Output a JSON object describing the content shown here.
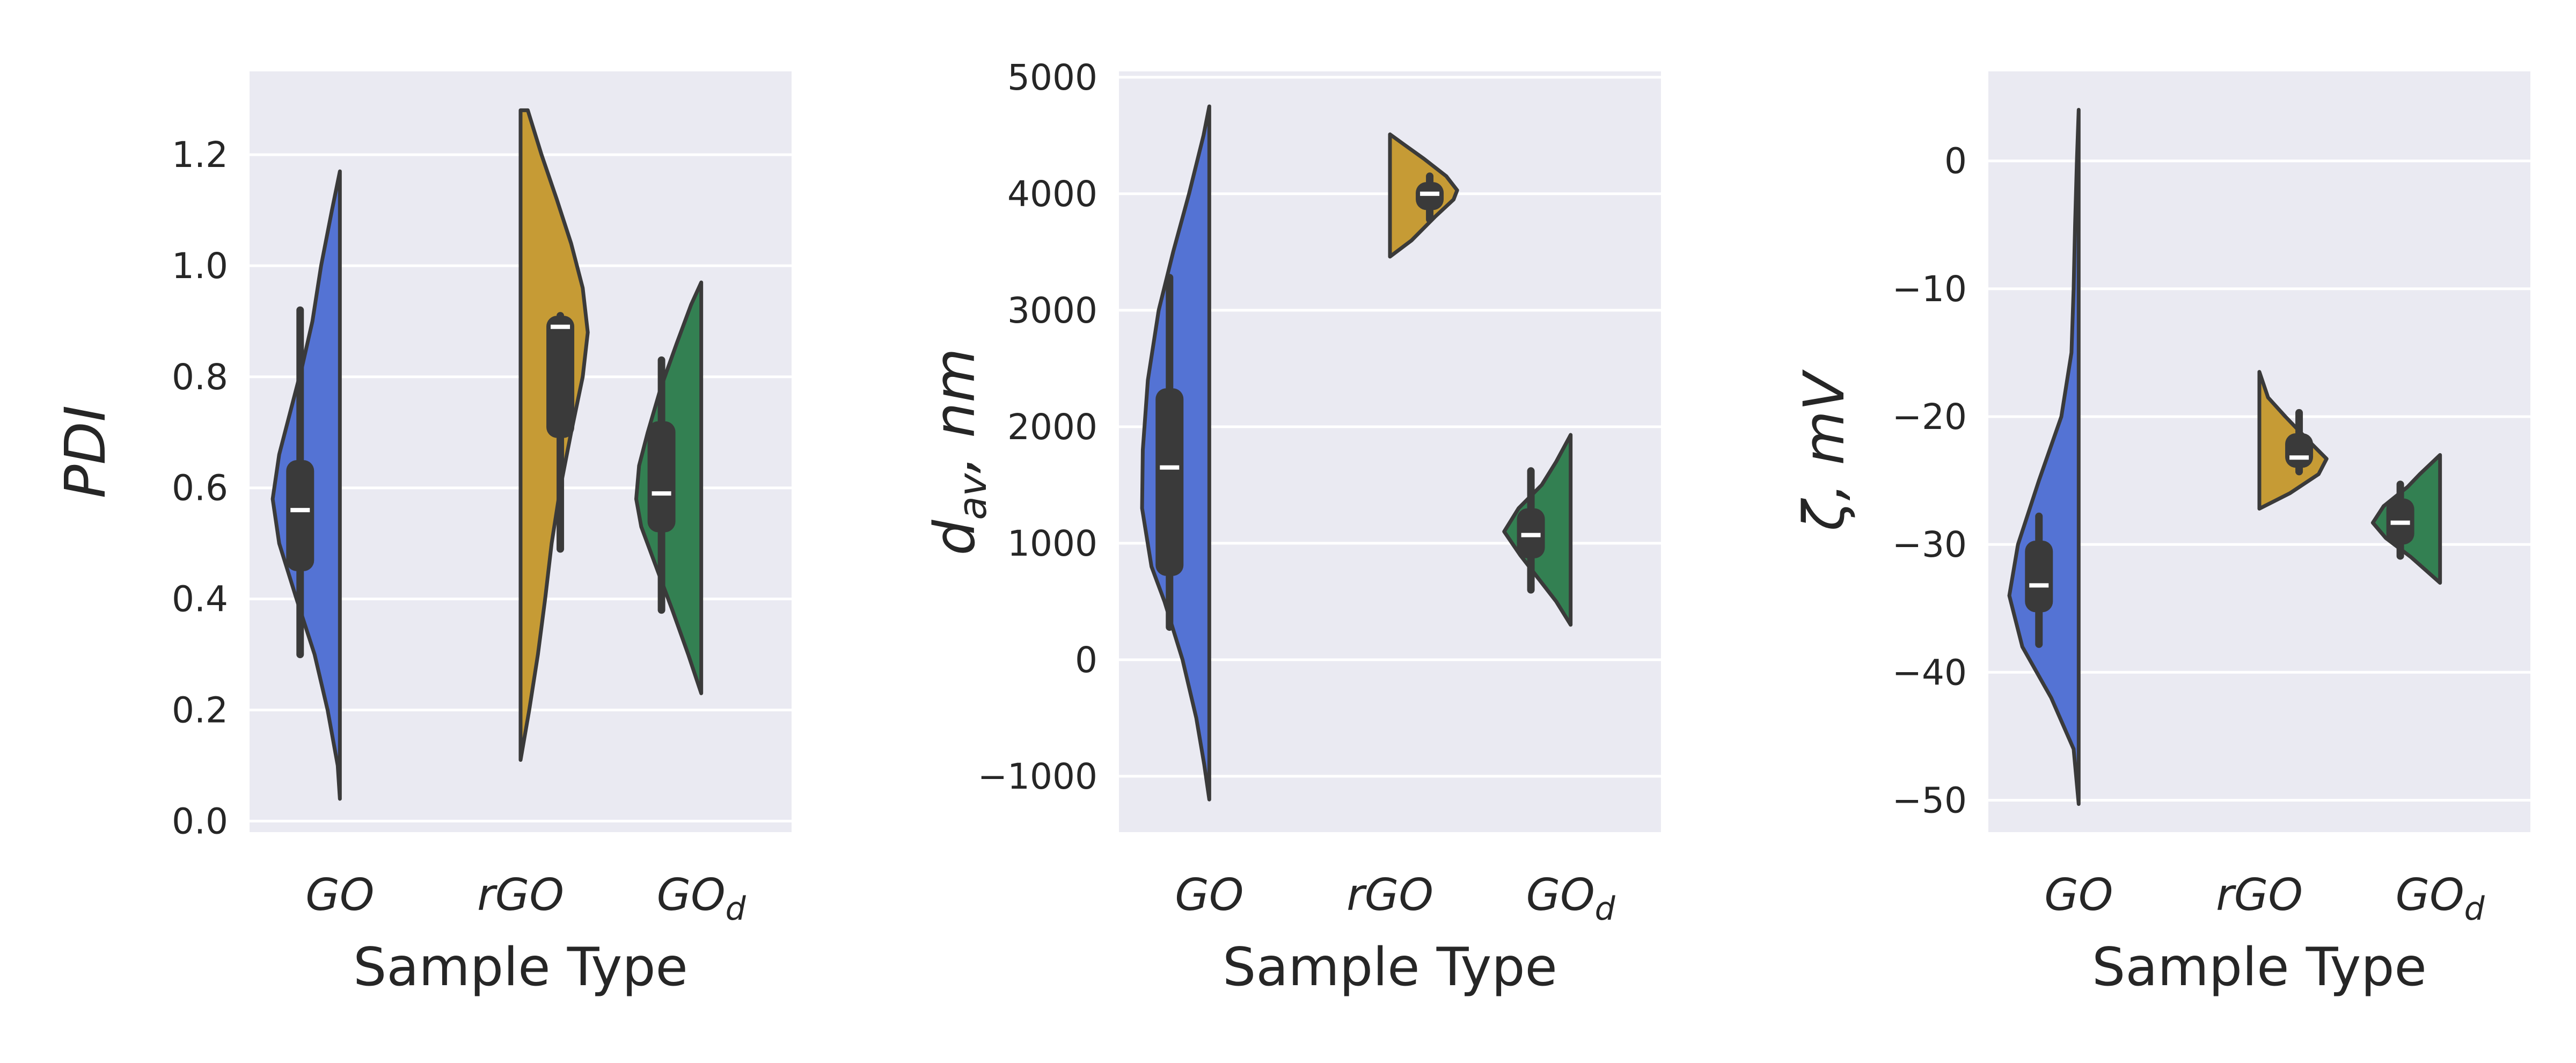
{
  "colors": {
    "background": "#eaeaf2",
    "grid": "#ffffff",
    "edge": "#3a3a3a",
    "GO": "#5473d4",
    "rGO": "#c69b35",
    "GOd": "#338052"
  },
  "chart_data": [
    {
      "type": "violin",
      "ylabel": "PDI",
      "xlabel": "Sample Type",
      "categories": [
        {
          "text": "GO",
          "sub": ""
        },
        {
          "text": "rGO",
          "sub": ""
        },
        {
          "text": "GO",
          "sub": "d"
        }
      ],
      "ylim": [
        -0.02,
        1.35
      ],
      "yticks": [
        0.0,
        0.2,
        0.4,
        0.6,
        0.8,
        1.0,
        1.2
      ],
      "ytick_labels": [
        "0.0",
        "0.2",
        "0.4",
        "0.6",
        "0.8",
        "1.0",
        "1.2"
      ],
      "grid": true,
      "violins": [
        {
          "category": "GO",
          "side": "left",
          "color_key": "GO",
          "profile": [
            [
              0.04,
              0.0
            ],
            [
              0.1,
              0.03
            ],
            [
              0.2,
              0.17
            ],
            [
              0.3,
              0.35
            ],
            [
              0.4,
              0.6
            ],
            [
              0.5,
              0.84
            ],
            [
              0.58,
              0.93
            ],
            [
              0.66,
              0.84
            ],
            [
              0.74,
              0.68
            ],
            [
              0.82,
              0.52
            ],
            [
              0.9,
              0.38
            ],
            [
              1.0,
              0.26
            ],
            [
              1.1,
              0.11
            ],
            [
              1.17,
              0.0
            ]
          ],
          "box": {
            "q1": 0.45,
            "median": 0.56,
            "q3": 0.65,
            "whisker_low": 0.3,
            "whisker_high": 0.92
          }
        },
        {
          "category": "rGO",
          "side": "right",
          "color_key": "rGO",
          "profile": [
            [
              0.11,
              0.0
            ],
            [
              0.2,
              0.12
            ],
            [
              0.3,
              0.24
            ],
            [
              0.4,
              0.34
            ],
            [
              0.5,
              0.43
            ],
            [
              0.6,
              0.55
            ],
            [
              0.7,
              0.7
            ],
            [
              0.8,
              0.86
            ],
            [
              0.88,
              0.93
            ],
            [
              0.96,
              0.86
            ],
            [
              1.04,
              0.7
            ],
            [
              1.12,
              0.5
            ],
            [
              1.2,
              0.29
            ],
            [
              1.28,
              0.1
            ]
          ],
          "box": {
            "q1": 0.69,
            "median": 0.89,
            "q3": 0.91,
            "whisker_low": 0.49,
            "whisker_high": 0.91
          }
        },
        {
          "category": "GOd",
          "side": "left",
          "color_key": "GOd",
          "profile": [
            [
              0.23,
              0.0
            ],
            [
              0.3,
              0.18
            ],
            [
              0.38,
              0.4
            ],
            [
              0.46,
              0.63
            ],
            [
              0.53,
              0.83
            ],
            [
              0.58,
              0.9
            ],
            [
              0.64,
              0.86
            ],
            [
              0.7,
              0.74
            ],
            [
              0.78,
              0.56
            ],
            [
              0.86,
              0.34
            ],
            [
              0.93,
              0.14
            ],
            [
              0.97,
              0.0
            ]
          ],
          "box": {
            "q1": 0.52,
            "median": 0.59,
            "q3": 0.72,
            "whisker_low": 0.38,
            "whisker_high": 0.83
          }
        }
      ]
    },
    {
      "type": "violin",
      "ylabel": "d",
      "ylabel_sub": "av",
      "ylabel_suffix": ", nm",
      "xlabel": "Sample Type",
      "categories": [
        {
          "text": "GO",
          "sub": ""
        },
        {
          "text": "rGO",
          "sub": ""
        },
        {
          "text": "GO",
          "sub": "d"
        }
      ],
      "ylim": [
        -1480,
        5050
      ],
      "yticks": [
        -1000,
        0,
        1000,
        2000,
        3000,
        4000,
        5000
      ],
      "ytick_labels": [
        "−1000",
        "0",
        "1000",
        "2000",
        "3000",
        "4000",
        "5000"
      ],
      "grid": true,
      "violins": [
        {
          "category": "GO",
          "side": "left",
          "color_key": "GO",
          "profile": [
            [
              -1200,
              0.0
            ],
            [
              -900,
              0.07
            ],
            [
              -500,
              0.18
            ],
            [
              0,
              0.37
            ],
            [
              500,
              0.62
            ],
            [
              800,
              0.8
            ],
            [
              1300,
              0.93
            ],
            [
              1800,
              0.92
            ],
            [
              2400,
              0.85
            ],
            [
              3000,
              0.7
            ],
            [
              3500,
              0.5
            ],
            [
              4000,
              0.28
            ],
            [
              4500,
              0.08
            ],
            [
              4750,
              0.0
            ]
          ],
          "box": {
            "q1": 720,
            "median": 1650,
            "q3": 2330,
            "whisker_low": 280,
            "whisker_high": 3280
          }
        },
        {
          "category": "rGO",
          "side": "right",
          "color_key": "rGO",
          "profile": [
            [
              3460,
              0.0
            ],
            [
              3600,
              0.3
            ],
            [
              3800,
              0.62
            ],
            [
              3950,
              0.88
            ],
            [
              4030,
              0.93
            ],
            [
              4150,
              0.78
            ],
            [
              4300,
              0.47
            ],
            [
              4420,
              0.2
            ],
            [
              4510,
              0.0
            ]
          ],
          "box": {
            "q1": 3860,
            "median": 4000,
            "q3": 4100,
            "whisker_low": 3780,
            "whisker_high": 4150
          }
        },
        {
          "category": "GOd",
          "side": "left",
          "color_key": "GOd",
          "profile": [
            [
              300,
              0.0
            ],
            [
              500,
              0.2
            ],
            [
              700,
              0.45
            ],
            [
              900,
              0.7
            ],
            [
              1100,
              0.92
            ],
            [
              1300,
              0.72
            ],
            [
              1500,
              0.4
            ],
            [
              1700,
              0.2
            ],
            [
              1930,
              0.0
            ]
          ],
          "box": {
            "q1": 870,
            "median": 1070,
            "q3": 1300,
            "whisker_low": 600,
            "whisker_high": 1620
          }
        }
      ]
    },
    {
      "type": "violin",
      "ylabel": "ζ, mV",
      "xlabel": "Sample Type",
      "categories": [
        {
          "text": "GO",
          "sub": ""
        },
        {
          "text": "rGO",
          "sub": ""
        },
        {
          "text": "GO",
          "sub": "d"
        }
      ],
      "ylim": [
        -52.5,
        7
      ],
      "yticks": [
        -50,
        -40,
        -30,
        -20,
        -10,
        0
      ],
      "ytick_labels": [
        "−50",
        "−40",
        "−30",
        "−20",
        "−10",
        "0"
      ],
      "grid": true,
      "violins": [
        {
          "category": "GO",
          "side": "left",
          "color_key": "GO",
          "profile": [
            [
              -50.3,
              0.0
            ],
            [
              -46,
              0.07
            ],
            [
              -42,
              0.38
            ],
            [
              -38,
              0.78
            ],
            [
              -34,
              0.96
            ],
            [
              -30,
              0.84
            ],
            [
              -25,
              0.55
            ],
            [
              -20,
              0.24
            ],
            [
              -15,
              0.1
            ],
            [
              -10,
              0.07
            ],
            [
              -5,
              0.05
            ],
            [
              0,
              0.025
            ],
            [
              4,
              0.0
            ]
          ],
          "box": {
            "q1": -35.3,
            "median": -33.2,
            "q3": -29.7,
            "whisker_low": -37.8,
            "whisker_high": -27.8
          }
        },
        {
          "category": "rGO",
          "side": "right",
          "color_key": "rGO",
          "profile": [
            [
              -27.2,
              0.0
            ],
            [
              -26,
              0.42
            ],
            [
              -24.5,
              0.82
            ],
            [
              -23.3,
              0.93
            ],
            [
              -22,
              0.7
            ],
            [
              -20,
              0.36
            ],
            [
              -18.5,
              0.12
            ],
            [
              -16.5,
              0.0
            ]
          ],
          "box": {
            "q1": -24.0,
            "median": -23.2,
            "q3": -21.3,
            "whisker_low": -24.3,
            "whisker_high": -19.7
          }
        },
        {
          "category": "GOd",
          "side": "left",
          "color_key": "GOd",
          "profile": [
            [
              -33,
              0.0
            ],
            [
              -31,
              0.4
            ],
            [
              -29.5,
              0.75
            ],
            [
              -28.3,
              0.93
            ],
            [
              -27,
              0.78
            ],
            [
              -25.5,
              0.45
            ],
            [
              -24.5,
              0.28
            ],
            [
              -23,
              0.0
            ]
          ],
          "box": {
            "q1": -30.0,
            "median": -28.3,
            "q3": -26.4,
            "whisker_low": -30.9,
            "whisker_high": -25.3
          }
        }
      ]
    }
  ]
}
